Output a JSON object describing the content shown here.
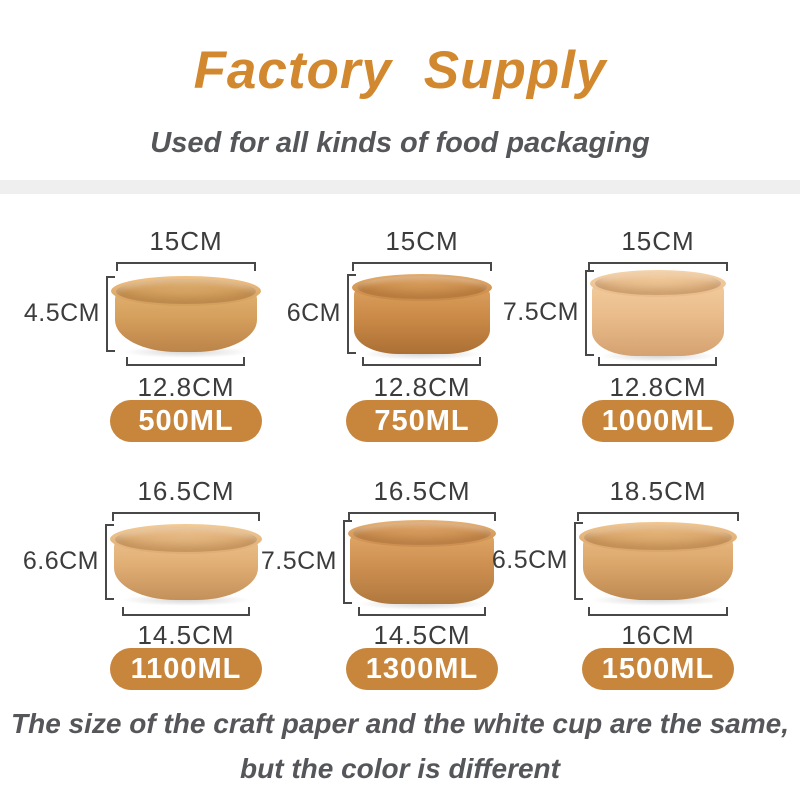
{
  "header": {
    "title": "Factory Supply",
    "subtitle": "Used for all kinds of food packaging"
  },
  "footer": {
    "line1": "The size of the craft paper and the white cup are the same,",
    "line2": "but the color is different"
  },
  "colors": {
    "title_accent": "#D2882F",
    "badge_fill": "#C8863C",
    "badge_text": "#FFFFFF",
    "body_text": "#55565A",
    "dimension_text": "#3C3C3C",
    "dimension_line": "#484848"
  },
  "products": [
    {
      "volume": "500ML",
      "top_diameter": "15CM",
      "height": "4.5CM",
      "bottom_diameter": "12.8CM",
      "bowl": {
        "rim": "#EFC28A",
        "light": "#E2B271",
        "base": "#D59F5C",
        "dark": "#BC8449",
        "inner": "#D8A767",
        "badge": "#C8863C"
      }
    },
    {
      "volume": "750ML",
      "top_diameter": "15CM",
      "height": "6CM",
      "bottom_diameter": "12.8CM",
      "bowl": {
        "rim": "#E3AC6C",
        "light": "#DCA05E",
        "base": "#CB8A47",
        "dark": "#AC7035",
        "inner": "#D69C5B",
        "badge": "#C8863C"
      }
    },
    {
      "volume": "1000ML",
      "top_diameter": "15CM",
      "height": "7.5CM",
      "bottom_diameter": "12.8CM",
      "bowl": {
        "rim": "#F5D4AA",
        "light": "#F2CB9C",
        "base": "#EABC8B",
        "dark": "#D5A271",
        "inner": "#EFC796",
        "badge": "#C8863C"
      }
    },
    {
      "volume": "1100ML",
      "top_diameter": "16.5CM",
      "height": "6.6CM",
      "bottom_diameter": "14.5CM",
      "bowl": {
        "rim": "#F1CB97",
        "light": "#EBC08B",
        "base": "#E0AE74",
        "dark": "#C3905A",
        "inner": "#E6B983",
        "badge": "#C8863C"
      }
    },
    {
      "volume": "1300ML",
      "top_diameter": "16.5CM",
      "height": "7.5CM",
      "bottom_diameter": "14.5CM",
      "bowl": {
        "rim": "#E6B273",
        "light": "#DFA767",
        "base": "#CE9051",
        "dark": "#B0783E",
        "inner": "#D89E60",
        "badge": "#C8863C"
      }
    },
    {
      "volume": "1500ML",
      "top_diameter": "18.5CM",
      "height": "6.5CM",
      "bottom_diameter": "16CM",
      "bowl": {
        "rim": "#F0C692",
        "light": "#E8BA82",
        "base": "#DBA66A",
        "dark": "#BE8A52",
        "inner": "#E2B175",
        "badge": "#C8863C"
      }
    }
  ]
}
